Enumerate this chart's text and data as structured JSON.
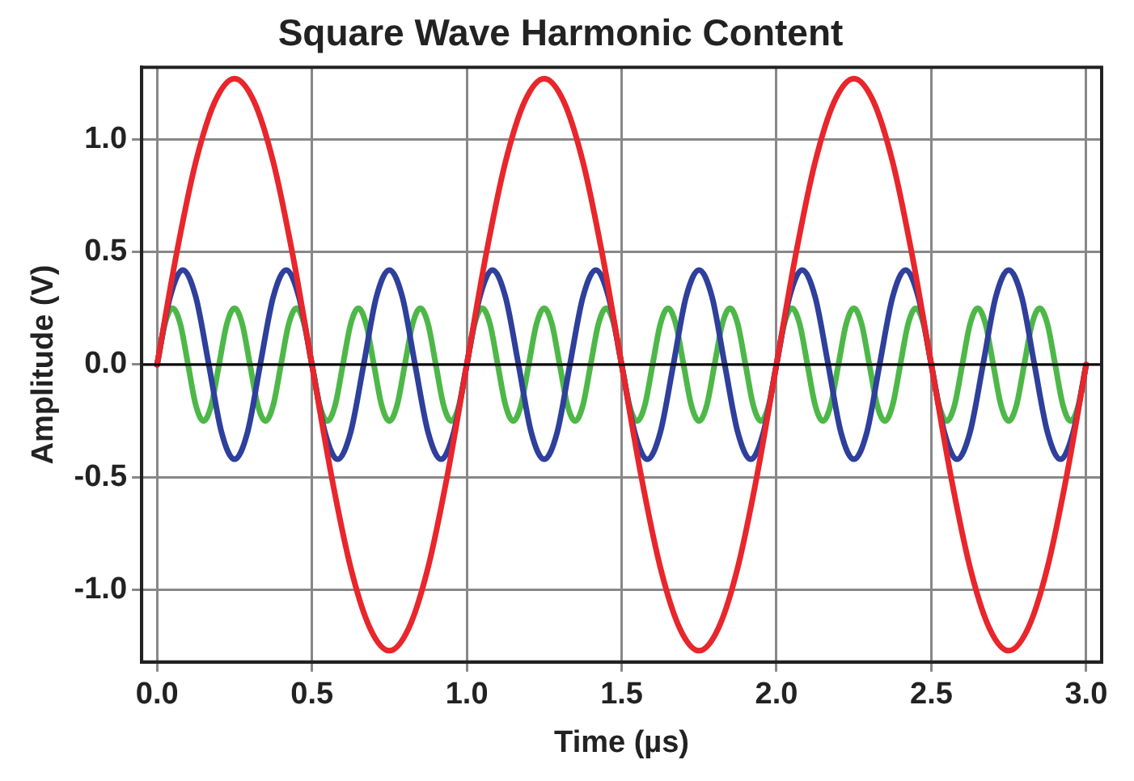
{
  "chart_data": {
    "type": "line",
    "title": "Square Wave Harmonic Content",
    "xlabel": "Time (µs)",
    "ylabel": "Amplitude (V)",
    "xlim": [
      -0.05,
      3.05
    ],
    "xticks": [
      {
        "value": 0,
        "label": "0.0"
      },
      0.5,
      {
        "value": 1,
        "label": "1.0"
      },
      1.5,
      {
        "value": 2,
        "label": "2.0"
      },
      2.5,
      {
        "value": 3,
        "label": "3.0"
      }
    ],
    "ylim": [
      -1.32,
      1.32
    ],
    "yticks": [
      {
        "value": -1,
        "label": "-1.0"
      },
      -0.5,
      {
        "value": 0,
        "label": "0.0"
      },
      0.5,
      {
        "value": 1,
        "label": "1.0"
      }
    ],
    "grid": true,
    "legend": false,
    "marker": "none",
    "line_style": "solid",
    "ref_lines": [
      {
        "axis": "y",
        "value": 0,
        "color": "#000000"
      }
    ],
    "series": [
      {
        "color": "#e8262b",
        "x": [
          0,
          0.0625,
          0.125,
          0.1875,
          0.25,
          0.3125,
          0.375,
          0.4375,
          0.5,
          0.5625,
          0.625,
          0.6875,
          0.75,
          0.8125,
          0.875,
          0.9375,
          1,
          1.0625,
          1.125,
          1.1875,
          1.25,
          1.3125,
          1.375,
          1.4375,
          1.5,
          1.5625,
          1.625,
          1.6875,
          1.75,
          1.8125,
          1.875,
          1.9375,
          2,
          2.0625,
          2.125,
          2.1875,
          2.25,
          2.3125,
          2.375,
          2.4375,
          2.5,
          2.5625,
          2.625,
          2.6875,
          2.75,
          2.8125,
          2.875,
          2.9375,
          3
        ],
        "values": [
          0,
          0.49,
          0.9,
          1.17,
          1.27,
          1.17,
          0.9,
          0.49,
          0,
          -0.49,
          -0.9,
          -1.17,
          -1.27,
          -1.17,
          -0.9,
          -0.49,
          0,
          0.49,
          0.9,
          1.17,
          1.27,
          1.17,
          0.9,
          0.49,
          0,
          -0.49,
          -0.9,
          -1.17,
          -1.27,
          -1.17,
          -0.9,
          -0.49,
          0,
          0.49,
          0.9,
          1.17,
          1.27,
          1.17,
          0.9,
          0.49,
          0,
          -0.49,
          -0.9,
          -1.17,
          -1.27,
          -1.17,
          -0.9,
          -0.49,
          0
        ]
      },
      {
        "color": "#2e3f9c",
        "x": [
          0,
          0.042,
          0.083,
          0.125,
          0.167,
          0.208,
          0.25,
          0.292,
          0.333,
          0.375,
          0.417,
          0.458,
          0.5,
          0.542,
          0.583,
          0.625,
          0.667,
          0.708,
          0.75,
          0.792,
          0.833,
          0.875,
          0.917,
          0.958,
          1,
          1.042,
          1.083,
          1.125,
          1.167,
          1.208,
          1.25,
          1.292,
          1.333,
          1.375,
          1.417,
          1.458,
          1.5,
          1.542,
          1.583,
          1.625,
          1.667,
          1.708,
          1.75,
          1.792,
          1.833,
          1.875,
          1.917,
          1.958,
          2,
          2.042,
          2.083,
          2.125,
          2.167,
          2.208,
          2.25,
          2.292,
          2.333,
          2.375,
          2.417,
          2.458,
          2.5,
          2.542,
          2.583,
          2.625,
          2.667,
          2.708,
          2.75,
          2.792,
          2.833,
          2.875,
          2.917,
          2.958,
          3
        ],
        "values": [
          0,
          0.3,
          0.42,
          0.3,
          0,
          -0.3,
          -0.42,
          -0.3,
          0,
          0.3,
          0.42,
          0.3,
          0,
          -0.3,
          -0.42,
          -0.3,
          0,
          0.3,
          0.42,
          0.3,
          0,
          -0.3,
          -0.42,
          -0.3,
          0,
          0.3,
          0.42,
          0.3,
          0,
          -0.3,
          -0.42,
          -0.3,
          0,
          0.3,
          0.42,
          0.3,
          0,
          -0.3,
          -0.42,
          -0.3,
          0,
          0.3,
          0.42,
          0.3,
          0,
          -0.3,
          -0.42,
          -0.3,
          0,
          0.3,
          0.42,
          0.3,
          0,
          -0.3,
          -0.42,
          -0.3,
          0,
          0.3,
          0.42,
          0.3,
          0,
          -0.3,
          -0.42,
          -0.3,
          0,
          0.3,
          0.42,
          0.3,
          0,
          -0.3,
          -0.42,
          -0.3,
          0
        ]
      },
      {
        "color": "#4db848",
        "x": [
          0,
          0.025,
          0.05,
          0.075,
          0.1,
          0.125,
          0.15,
          0.175,
          0.2,
          0.225,
          0.25,
          0.275,
          0.3,
          0.325,
          0.35,
          0.375,
          0.4,
          0.425,
          0.45,
          0.475,
          0.5,
          0.525,
          0.55,
          0.575,
          0.6,
          0.625,
          0.65,
          0.675,
          0.7,
          0.725,
          0.75,
          0.775,
          0.8,
          0.825,
          0.85,
          0.875,
          0.9,
          0.925,
          0.95,
          0.975,
          1,
          1.025,
          1.05,
          1.075,
          1.1,
          1.125,
          1.15,
          1.175,
          1.2,
          1.225,
          1.25,
          1.275,
          1.3,
          1.325,
          1.35,
          1.375,
          1.4,
          1.425,
          1.45,
          1.475,
          1.5,
          1.525,
          1.55,
          1.575,
          1.6,
          1.625,
          1.65,
          1.675,
          1.7,
          1.725,
          1.75,
          1.775,
          1.8,
          1.825,
          1.85,
          1.875,
          1.9,
          1.925,
          1.95,
          1.975,
          2,
          2.025,
          2.05,
          2.075,
          2.1,
          2.125,
          2.15,
          2.175,
          2.2,
          2.225,
          2.25,
          2.275,
          2.3,
          2.325,
          2.35,
          2.375,
          2.4,
          2.425,
          2.45,
          2.475,
          2.5,
          2.525,
          2.55,
          2.575,
          2.6,
          2.625,
          2.65,
          2.675,
          2.7,
          2.725,
          2.75,
          2.775,
          2.8,
          2.825,
          2.85,
          2.875,
          2.9,
          2.925,
          2.95,
          2.975,
          3
        ],
        "values": [
          0,
          0.18,
          0.25,
          0.18,
          0,
          -0.18,
          -0.25,
          -0.18,
          0,
          0.18,
          0.25,
          0.18,
          0,
          -0.18,
          -0.25,
          -0.18,
          0,
          0.18,
          0.25,
          0.18,
          0,
          -0.18,
          -0.25,
          -0.18,
          0,
          0.18,
          0.25,
          0.18,
          0,
          -0.18,
          -0.25,
          -0.18,
          0,
          0.18,
          0.25,
          0.18,
          0,
          -0.18,
          -0.25,
          -0.18,
          0,
          0.18,
          0.25,
          0.18,
          0,
          -0.18,
          -0.25,
          -0.18,
          0,
          0.18,
          0.25,
          0.18,
          0,
          -0.18,
          -0.25,
          -0.18,
          0,
          0.18,
          0.25,
          0.18,
          0,
          -0.18,
          -0.25,
          -0.18,
          0,
          0.18,
          0.25,
          0.18,
          0,
          -0.18,
          -0.25,
          -0.18,
          0,
          0.18,
          0.25,
          0.18,
          0,
          -0.18,
          -0.25,
          -0.18,
          0,
          0.18,
          0.25,
          0.18,
          0,
          -0.18,
          -0.25,
          -0.18,
          0,
          0.18,
          0.25,
          0.18,
          0,
          -0.18,
          -0.25,
          -0.18,
          0,
          0.18,
          0.25,
          0.18,
          0,
          -0.18,
          -0.25,
          -0.18,
          0,
          0.18,
          0.25,
          0.18,
          0,
          -0.18,
          -0.25,
          -0.18,
          0,
          0.18,
          0.25,
          0.18,
          0,
          -0.18,
          -0.25,
          -0.18,
          0
        ]
      }
    ]
  }
}
